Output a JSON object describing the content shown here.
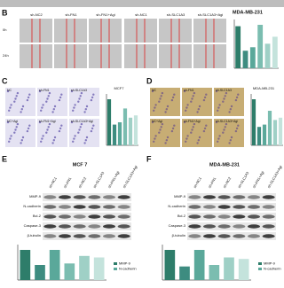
{
  "panel_b": {
    "label": "B",
    "title": "MDA-MB-231",
    "row_labels": [
      "0h",
      "24h"
    ],
    "left_columns": [
      "sh-NC2",
      "sh-FN1",
      "sh-FN1+Agi"
    ],
    "right_columns": [
      "sh-NC1",
      "sh-SLC1A3",
      "sh-SLC1A3+Agi"
    ],
    "bar_values": [
      60,
      25,
      30,
      62,
      35,
      45
    ]
  },
  "panel_c": {
    "label": "C",
    "title": "MCF7",
    "images": [
      "NC",
      "sh-FN1",
      "sh-SLC1A3",
      "NC+Agi",
      "sh-FN1+Agi",
      "sh-SLC1A3+Agi"
    ],
    "bar_values": [
      100,
      45,
      50,
      80,
      60,
      65
    ]
  },
  "panel_d": {
    "label": "D",
    "title": "MDA-MB-231",
    "images": [
      "NC",
      "sh-FN1",
      "sh-SLC1A3",
      "NC+Agi",
      "sh-FN1+Agi",
      "sh-SLC1A3+Agi"
    ],
    "bar_values": [
      100,
      40,
      45,
      75,
      55,
      60
    ]
  },
  "panel_e": {
    "label": "E",
    "title": "MCF 7",
    "columns": [
      "sh-NC1",
      "sh-FN1",
      "sh-NC2",
      "sh-SLC1A3",
      "sh-FN1+Agi",
      "sh-SLC1A3+Agi"
    ],
    "rows": [
      "MMP-9",
      "N-cadherin",
      "Bcl-2",
      "Caspase-3",
      "β-tubulin"
    ],
    "legend": [
      "MMP-9",
      "N-cadherin"
    ],
    "bar_values": [
      1.0,
      0.5,
      1.0,
      0.55,
      0.8,
      0.75
    ]
  },
  "panel_f": {
    "label": "F",
    "title": "MDA-MB-231",
    "columns": [
      "sh-NC1",
      "sh-FN1",
      "sh-NC2",
      "sh-SLC1A3",
      "sh-FN1+Agi",
      "sh-SLC1A3+Agi"
    ],
    "rows": [
      "MMP-9",
      "N-cadherin",
      "Bcl-2",
      "Caspase-3",
      "β-tubulin"
    ],
    "legend": [
      "MMP-9",
      "N-cadherin"
    ],
    "bar_values": [
      1.0,
      0.45,
      1.0,
      0.5,
      0.75,
      0.7
    ]
  }
}
